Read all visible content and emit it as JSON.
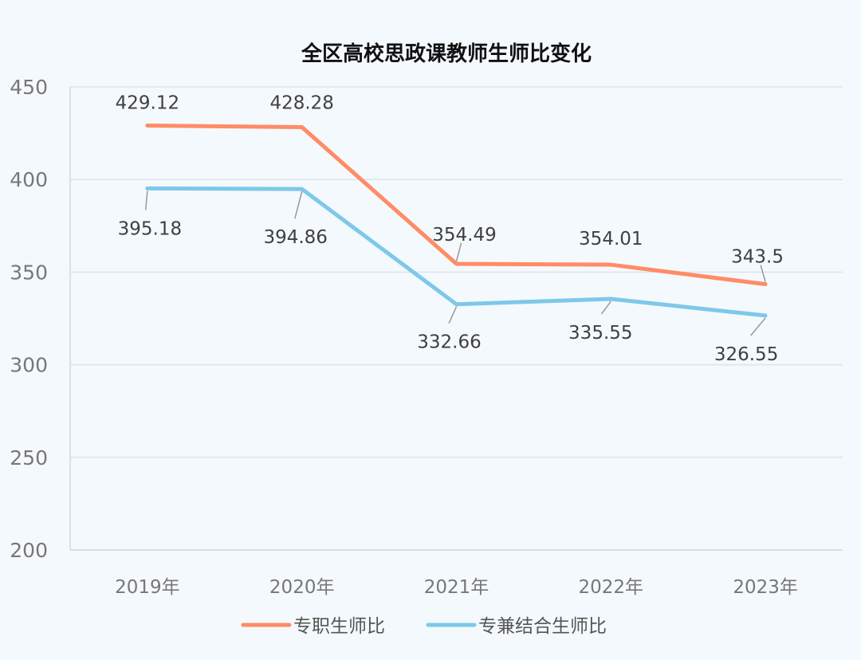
{
  "chart_data": {
    "type": "line",
    "title": "全区高校思政课教师生师比变化",
    "categories": [
      "2019年",
      "2020年",
      "2021年",
      "2022年",
      "2023年"
    ],
    "series": [
      {
        "name": "专职生师比",
        "values": [
          429.12,
          428.28,
          354.49,
          354.01,
          343.5
        ],
        "color": "#ff8c66"
      },
      {
        "name": "专兼结合生师比",
        "values": [
          395.18,
          394.86,
          332.66,
          335.55,
          326.55
        ],
        "color": "#7ec8ea"
      }
    ],
    "data_labels": [
      [
        "429.12",
        "428.28",
        "354.49",
        "354.01",
        "343.5"
      ],
      [
        "395.18",
        "394.86",
        "332.66",
        "335.55",
        "326.55"
      ]
    ],
    "ylim": [
      200,
      450
    ],
    "yticks": [
      "200",
      "250",
      "300",
      "350",
      "400",
      "450"
    ],
    "grid": true,
    "legend": "bottom"
  }
}
